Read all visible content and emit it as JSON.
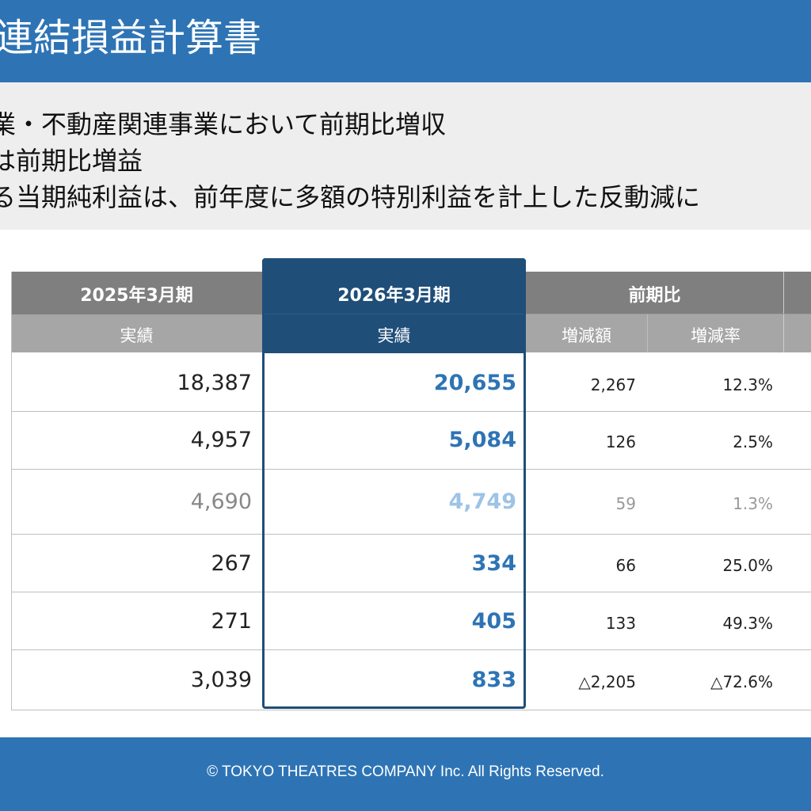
{
  "header": {
    "title": "連結損益計算書"
  },
  "summary": {
    "lines": [
      "業・不動産関連事業において前期比増収",
      "は前期比増益",
      "る当期純利益は、前年度に多額の特別利益を計上した反動減に"
    ]
  },
  "table": {
    "columns": {
      "fy2025": {
        "label": "2025年3月期",
        "sub": "実績"
      },
      "fy2026": {
        "label": "2026年3月期",
        "sub": "実績"
      },
      "yoy": {
        "label": "前期比",
        "sub_amount": "増減額",
        "sub_rate": "増減率"
      }
    },
    "rows": [
      {
        "fy2025": "18,387",
        "fy2026": "20,655",
        "diff": "2,267",
        "rate": "12.3%"
      },
      {
        "fy2025": "4,957",
        "fy2026": "5,084",
        "diff": "126",
        "rate": "2.5%"
      },
      {
        "fy2025": "4,690",
        "fy2026": "4,749",
        "diff": "59",
        "rate": "1.3%"
      },
      {
        "fy2025": "267",
        "fy2026": "334",
        "diff": "66",
        "rate": "25.0%"
      },
      {
        "fy2025": "271",
        "fy2026": "405",
        "diff": "133",
        "rate": "49.3%"
      },
      {
        "fy2025": "3,039",
        "fy2026": "833",
        "diff": "△2,205",
        "rate": "△72.6%"
      }
    ]
  },
  "footer": {
    "copyright": "© TOKYO THEATRES COMPANY Inc. All Rights Reserved."
  },
  "colors": {
    "header_blue": "#2e74b5",
    "navy": "#1f4e79",
    "value_blue": "#2e74b5",
    "muted_blue": "#9dc3e6"
  }
}
